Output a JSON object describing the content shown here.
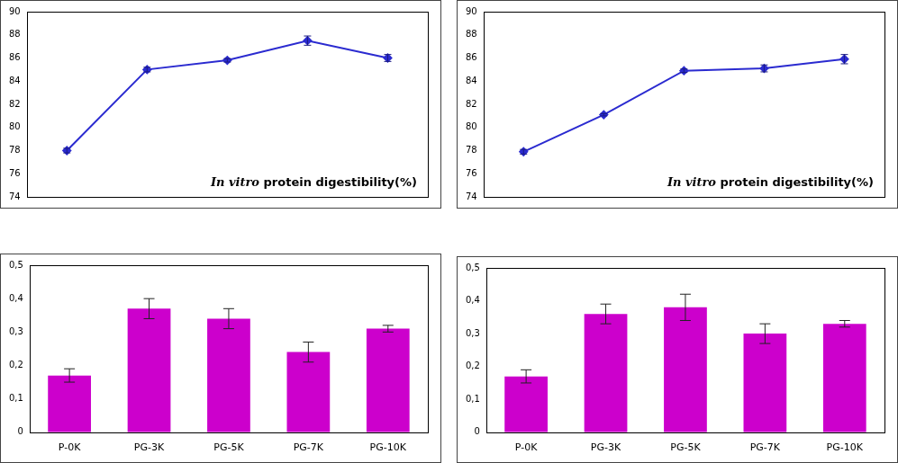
{
  "chart_data": [
    {
      "type": "line",
      "annotation": "In vitro protein digestibility(%)",
      "categories": [
        null,
        null,
        null,
        null,
        null
      ],
      "values": [
        78.0,
        85.0,
        85.8,
        87.5,
        86.0
      ],
      "errors": [
        0.2,
        0.2,
        0.15,
        0.4,
        0.3
      ],
      "color": "#2b2bd0",
      "marker": "diamond",
      "ylim": [
        74,
        90
      ],
      "yticks": [
        74,
        76,
        78,
        80,
        82,
        84,
        86,
        88,
        90
      ],
      "grid": false,
      "tick_labels": "y"
    },
    {
      "type": "line",
      "annotation": "In vitro protein digestibility(%)",
      "categories": [
        null,
        null,
        null,
        null,
        null
      ],
      "values": [
        77.9,
        81.1,
        84.9,
        85.1,
        85.9
      ],
      "errors": [
        0.2,
        0.1,
        0.15,
        0.3,
        0.4
      ],
      "color": "#2b2bd0",
      "marker": "diamond",
      "ylim": [
        74,
        90
      ],
      "yticks": [
        74,
        76,
        78,
        80,
        82,
        84,
        86,
        88,
        90
      ],
      "grid": false,
      "tick_labels": "y"
    },
    {
      "type": "bar",
      "categories": [
        "P-0K",
        "PG-3K",
        "PG-5K",
        "PG-7K",
        "PG-10K"
      ],
      "values": [
        0.17,
        0.37,
        0.34,
        0.24,
        0.31
      ],
      "errors": [
        0.02,
        0.03,
        0.03,
        0.03,
        0.01
      ],
      "color": "#cc00cc",
      "ylim": [
        0,
        0.5
      ],
      "yticks": [
        0,
        {
          "value": 0.1,
          "label": "0,1"
        },
        {
          "value": 0.2,
          "label": "0,2"
        },
        {
          "value": 0.3,
          "label": "0,3"
        },
        {
          "value": 0.4,
          "label": "0,4"
        },
        {
          "value": 0.5,
          "label": "0,5"
        }
      ],
      "grid": false
    },
    {
      "type": "bar",
      "categories": [
        "P-0K",
        "PG-3K",
        "PG-5K",
        "PG-7K",
        "PG-10K"
      ],
      "values": [
        0.17,
        0.36,
        0.38,
        0.3,
        0.33
      ],
      "errors": [
        0.02,
        0.03,
        0.04,
        0.03,
        0.01
      ],
      "color": "#cc00cc",
      "ylim": [
        0,
        0.5
      ],
      "yticks": [
        0,
        {
          "value": 0.1,
          "label": "0,1"
        },
        {
          "value": 0.2,
          "label": "0,2"
        },
        {
          "value": 0.3,
          "label": "0,3"
        },
        {
          "value": 0.4,
          "label": "0,4"
        },
        {
          "value": 0.5,
          "label": "0,5"
        }
      ],
      "grid": false
    }
  ]
}
